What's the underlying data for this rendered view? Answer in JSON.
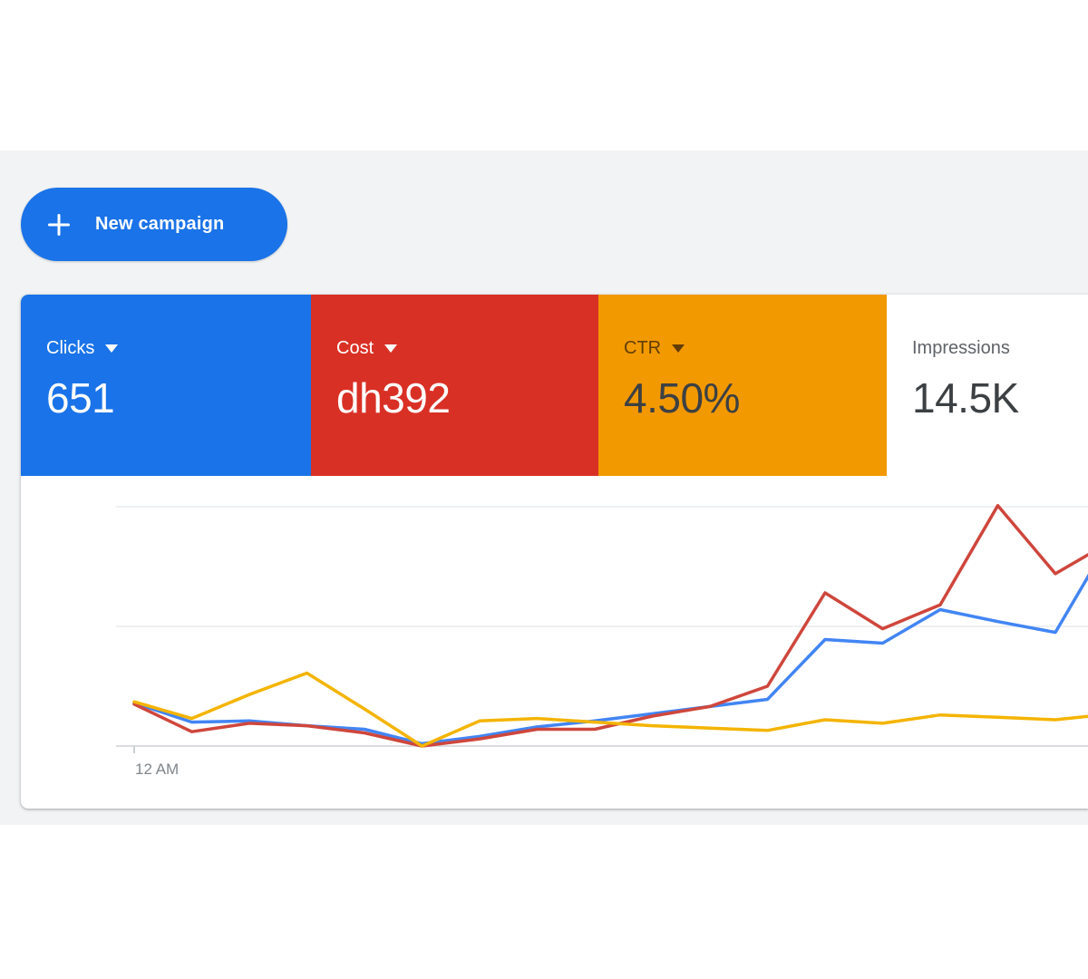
{
  "page": {
    "background": "#ffffff",
    "surface_background": "#f1f3f4"
  },
  "toolbar": {
    "new_campaign_label": "New campaign",
    "button_color": "#1a73e8"
  },
  "metrics": [
    {
      "id": "clicks",
      "label": "Clicks",
      "value": "651",
      "bg": "#1a73e8",
      "label_color": "#ffffff",
      "value_color": "#ffffff",
      "has_dropdown": true
    },
    {
      "id": "cost",
      "label": "Cost",
      "value": "dh392",
      "bg": "#d93025",
      "label_color": "#ffffff",
      "value_color": "#ffffff",
      "has_dropdown": true
    },
    {
      "id": "ctr",
      "label": "CTR",
      "value": "4.50%",
      "bg": "#f29900",
      "label_color": "rgba(0,0,0,0.60)",
      "value_color": "#3c4043",
      "has_dropdown": true
    },
    {
      "id": "impressions",
      "label": "Impressions",
      "value": "14.5K",
      "bg": "#ffffff",
      "label_color": "#5f6368",
      "value_color": "#3c4043",
      "has_dropdown": false
    }
  ],
  "chart_data": {
    "type": "line",
    "title": "",
    "x_axis": {
      "unit": "hour of day",
      "first_tick_label": "12 AM",
      "visible_points": 18,
      "note": "hourly points starting at 12 AM; only the first tick is labeled; series continue past the right screen edge"
    },
    "y_axis": {
      "tick_labels_visible": false,
      "gridline_values": [
        0,
        1,
        2
      ],
      "ylim": [
        0,
        2.08
      ],
      "note": "no numeric y labels; values normalized so middle gridline = 1 and top gridline = 2"
    },
    "legend": "none (series colors match metric cards: blue=Clicks, red=Cost, yellow=CTR)",
    "grid": "horizontal only",
    "series": [
      {
        "name": "Clicks",
        "color": "#4285f4",
        "values": [
          0.36,
          0.2,
          0.21,
          0.17,
          0.14,
          0.02,
          0.08,
          0.16,
          0.21,
          0.27,
          0.33,
          0.39,
          0.89,
          0.86,
          1.14,
          1.04,
          0.95,
          1.77
        ]
      },
      {
        "name": "Cost",
        "color": "#cf463c",
        "values": [
          0.35,
          0.12,
          0.19,
          0.17,
          0.11,
          0.0,
          0.06,
          0.14,
          0.14,
          0.25,
          0.33,
          0.5,
          1.28,
          0.98,
          1.18,
          2.01,
          1.44,
          1.72
        ]
      },
      {
        "name": "CTR",
        "color": "#f4b400",
        "values": [
          0.37,
          0.23,
          0.43,
          0.61,
          0.31,
          0.0,
          0.21,
          0.23,
          0.2,
          0.17,
          0.15,
          0.13,
          0.22,
          0.19,
          0.26,
          0.24,
          0.22,
          0.27
        ]
      }
    ]
  }
}
